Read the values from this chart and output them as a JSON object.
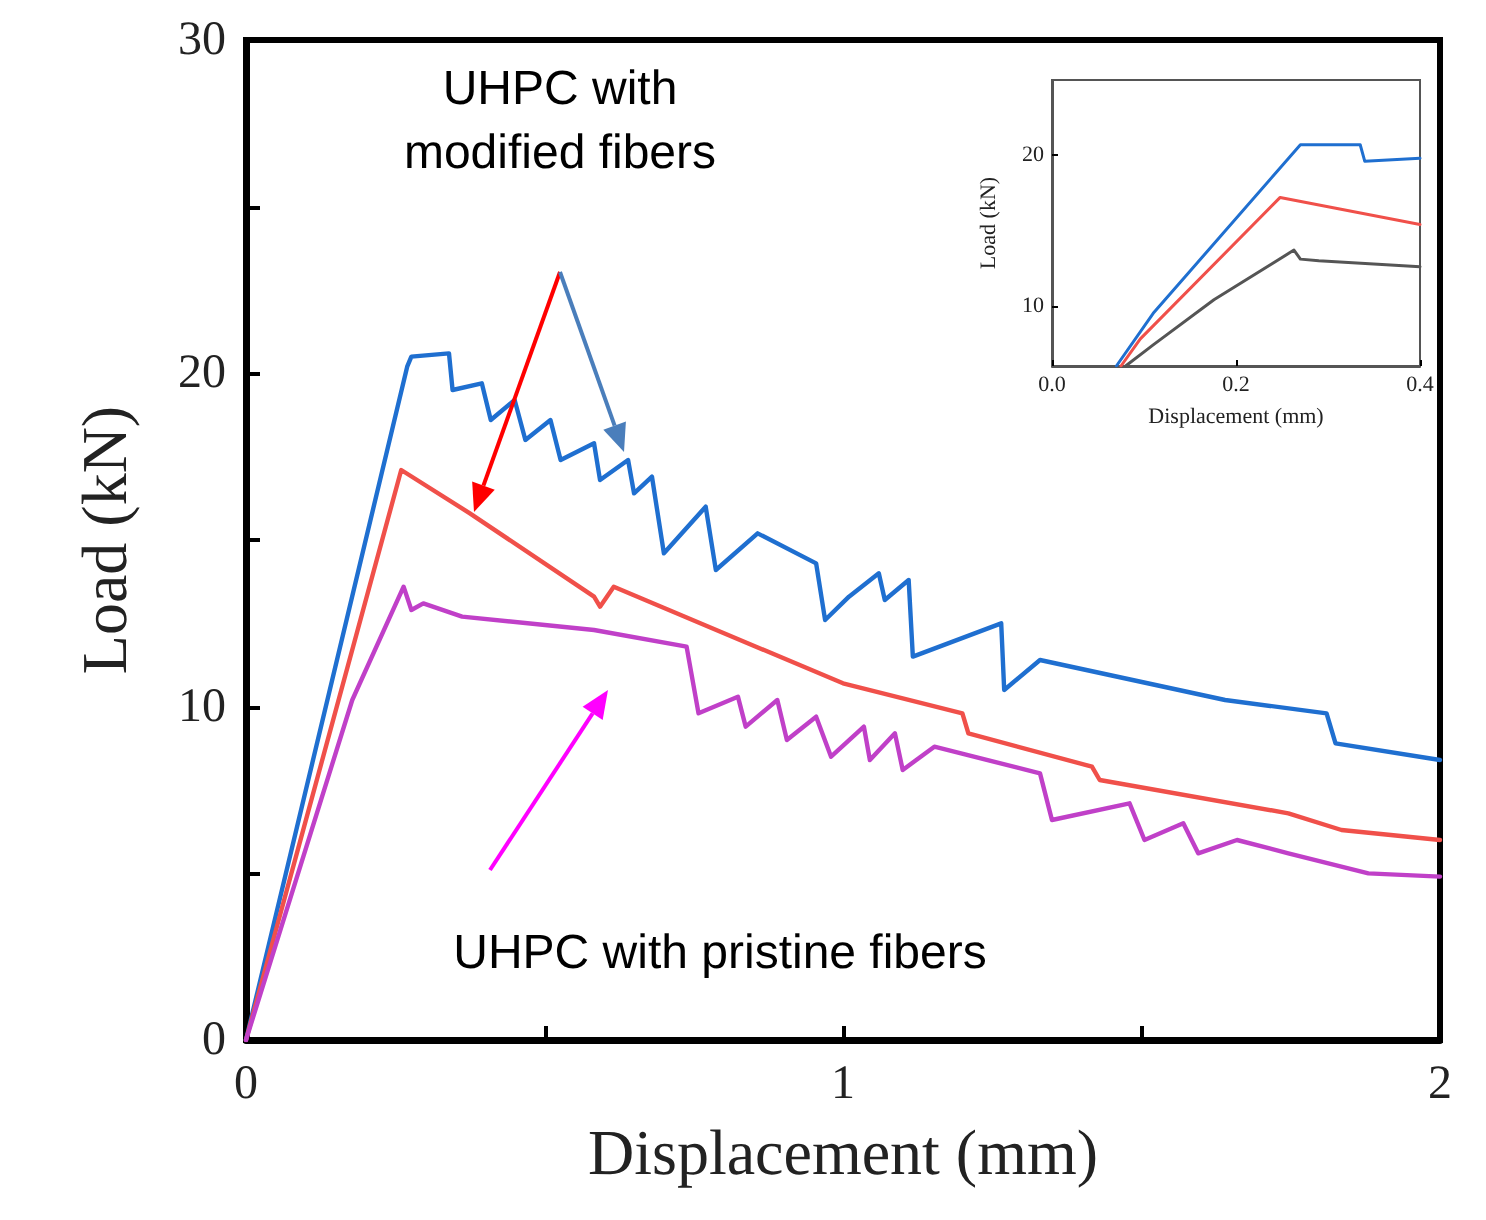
{
  "chart_data": [
    {
      "type": "line",
      "xlabel": "Displacement (mm)",
      "ylabel": "Load (kN)",
      "xlim": [
        0,
        2
      ],
      "ylim": [
        0,
        30
      ],
      "xticks": [
        0,
        {
          "value": 0.5,
          "label": null
        },
        1,
        {
          "value": 1.5,
          "label": null
        },
        2
      ],
      "yticks": [
        0,
        {
          "value": 5,
          "label": null
        },
        10,
        {
          "value": 15,
          "label": null
        },
        20,
        {
          "value": 25,
          "label": null
        },
        30
      ],
      "grid": false,
      "marker": "none",
      "line_style": "solid",
      "annotations": [
        "UHPC with\nmodified fibers",
        "UHPC with pristine fibers"
      ],
      "series": [
        {
          "color": "#1f6fd0",
          "x": [
            0,
            0.27,
            0.277,
            0.34,
            0.346,
            0.395,
            0.41,
            0.45,
            0.468,
            0.51,
            0.527,
            0.583,
            0.593,
            0.64,
            0.65,
            0.68,
            0.7,
            0.77,
            0.787,
            0.857,
            0.955,
            0.97,
            1.01,
            1.06,
            1.07,
            1.11,
            1.117,
            1.265,
            1.27,
            1.33,
            1.64,
            1.81,
            1.825,
            2.0
          ],
          "values": [
            0,
            20.2,
            20.5,
            20.6,
            19.5,
            19.7,
            18.6,
            19.2,
            18.0,
            18.6,
            17.4,
            17.9,
            16.8,
            17.4,
            16.4,
            16.9,
            14.6,
            16.0,
            14.1,
            15.2,
            14.3,
            12.6,
            13.3,
            14.0,
            13.2,
            13.8,
            11.5,
            12.5,
            10.5,
            11.4,
            10.2,
            9.8,
            8.9,
            8.4
          ]
        },
        {
          "color": "#f0504a",
          "x": [
            0,
            0.26,
            0.375,
            0.583,
            0.593,
            0.616,
            1.0,
            1.2,
            1.21,
            1.417,
            1.43,
            1.746,
            1.835,
            2.0
          ],
          "values": [
            0,
            17.1,
            15.8,
            13.3,
            13.0,
            13.6,
            10.7,
            9.8,
            9.2,
            8.2,
            7.8,
            6.8,
            6.3,
            6.0
          ]
        },
        {
          "color": "#c040c8",
          "x": [
            0,
            0.178,
            0.264,
            0.277,
            0.297,
            0.362,
            0.583,
            0.738,
            0.758,
            0.824,
            0.837,
            0.89,
            0.906,
            0.955,
            0.98,
            1.035,
            1.045,
            1.087,
            1.1,
            1.153,
            1.33,
            1.35,
            1.48,
            1.505,
            1.57,
            1.595,
            1.66,
            1.746,
            1.88,
            2.0
          ],
          "values": [
            0,
            10.2,
            13.6,
            12.9,
            13.1,
            12.7,
            12.3,
            11.8,
            9.8,
            10.3,
            9.4,
            10.2,
            9.0,
            9.7,
            8.5,
            9.4,
            8.4,
            9.2,
            8.1,
            8.8,
            8.0,
            6.6,
            7.1,
            6.0,
            6.5,
            5.6,
            6.0,
            5.6,
            5.0,
            4.9
          ]
        }
      ]
    },
    {
      "type": "line",
      "xlabel": "Displacement (mm)",
      "ylabel": "Load (kN)",
      "xlim": [
        0,
        0.4
      ],
      "ylim": [
        6,
        25
      ],
      "xticks": [
        {
          "value": 0,
          "label": "0.0"
        },
        {
          "value": 0.2,
          "label": "0.2"
        },
        {
          "value": 0.4,
          "label": "0.4"
        }
      ],
      "yticks": [
        10,
        20
      ],
      "grid": false,
      "marker": "none",
      "line_style": "solid",
      "series": [
        {
          "color": "#1f6fd0",
          "x": [
            0.07,
            0.11,
            0.27,
            0.335,
            0.34,
            0.4
          ],
          "values": [
            6,
            9.5,
            20.7,
            20.7,
            19.6,
            19.8
          ]
        },
        {
          "color": "#f0504a",
          "x": [
            0.075,
            0.096,
            0.248,
            0.4
          ],
          "values": [
            6,
            7.8,
            17.2,
            15.4
          ]
        },
        {
          "color": "#555555",
          "x": [
            0.08,
            0.11,
            0.176,
            0.263,
            0.27,
            0.29,
            0.4
          ],
          "values": [
            6,
            7.4,
            10.4,
            13.7,
            13.1,
            13.0,
            12.6
          ]
        }
      ]
    }
  ]
}
